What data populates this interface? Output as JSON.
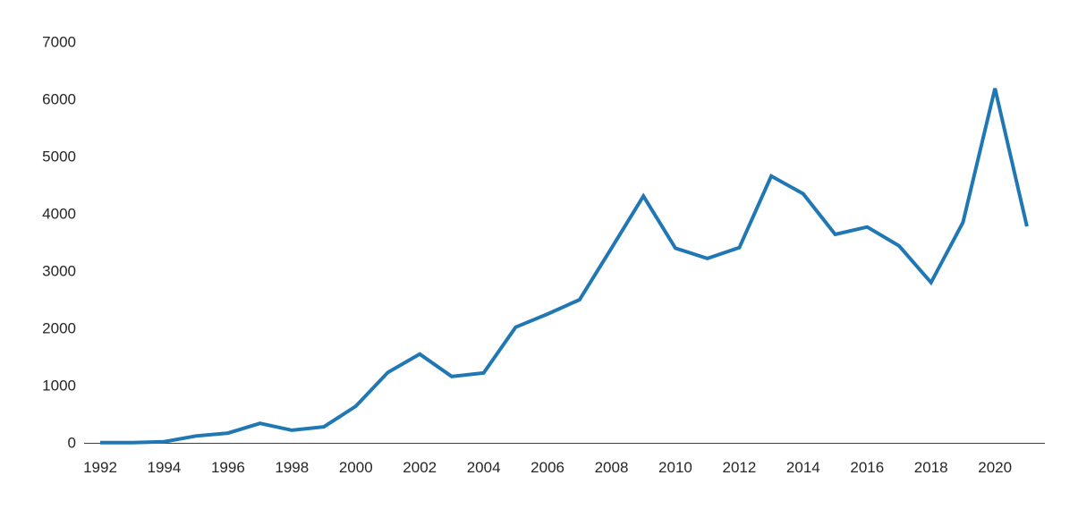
{
  "chart_data": {
    "type": "line",
    "title": "",
    "xlabel": "",
    "ylabel": "",
    "x": [
      1992,
      1993,
      1994,
      1995,
      1996,
      1997,
      1998,
      1999,
      2000,
      2001,
      2002,
      2003,
      2004,
      2005,
      2006,
      2007,
      2008,
      2009,
      2010,
      2011,
      2012,
      2013,
      2014,
      2015,
      2016,
      2017,
      2018,
      2019,
      2020,
      2021
    ],
    "values": [
      5,
      5,
      20,
      120,
      170,
      340,
      220,
      280,
      640,
      1230,
      1550,
      1160,
      1220,
      2020,
      2250,
      2500,
      3400,
      4310,
      3400,
      3220,
      3410,
      4660,
      4350,
      3640,
      3770,
      3440,
      2800,
      3850,
      6190,
      3780
    ],
    "x_tick_labels": [
      "1992",
      "1994",
      "1996",
      "1998",
      "2000",
      "2002",
      "2004",
      "2006",
      "2008",
      "2010",
      "2012",
      "2014",
      "2016",
      "2018",
      "2020"
    ],
    "y_tick_labels": [
      "0",
      "1000",
      "2000",
      "3000",
      "4000",
      "5000",
      "6000",
      "7000"
    ],
    "y_ticks": [
      0,
      1000,
      2000,
      3000,
      4000,
      5000,
      6000,
      7000
    ],
    "ylim": [
      0,
      7000
    ],
    "x_range": [
      1992,
      2021
    ],
    "grid": false,
    "legend": "none",
    "line_color": "#1F77B4",
    "axis_line_color": "#404040",
    "tick_label_color": "#262626",
    "background_color": "#FFFFFF"
  }
}
